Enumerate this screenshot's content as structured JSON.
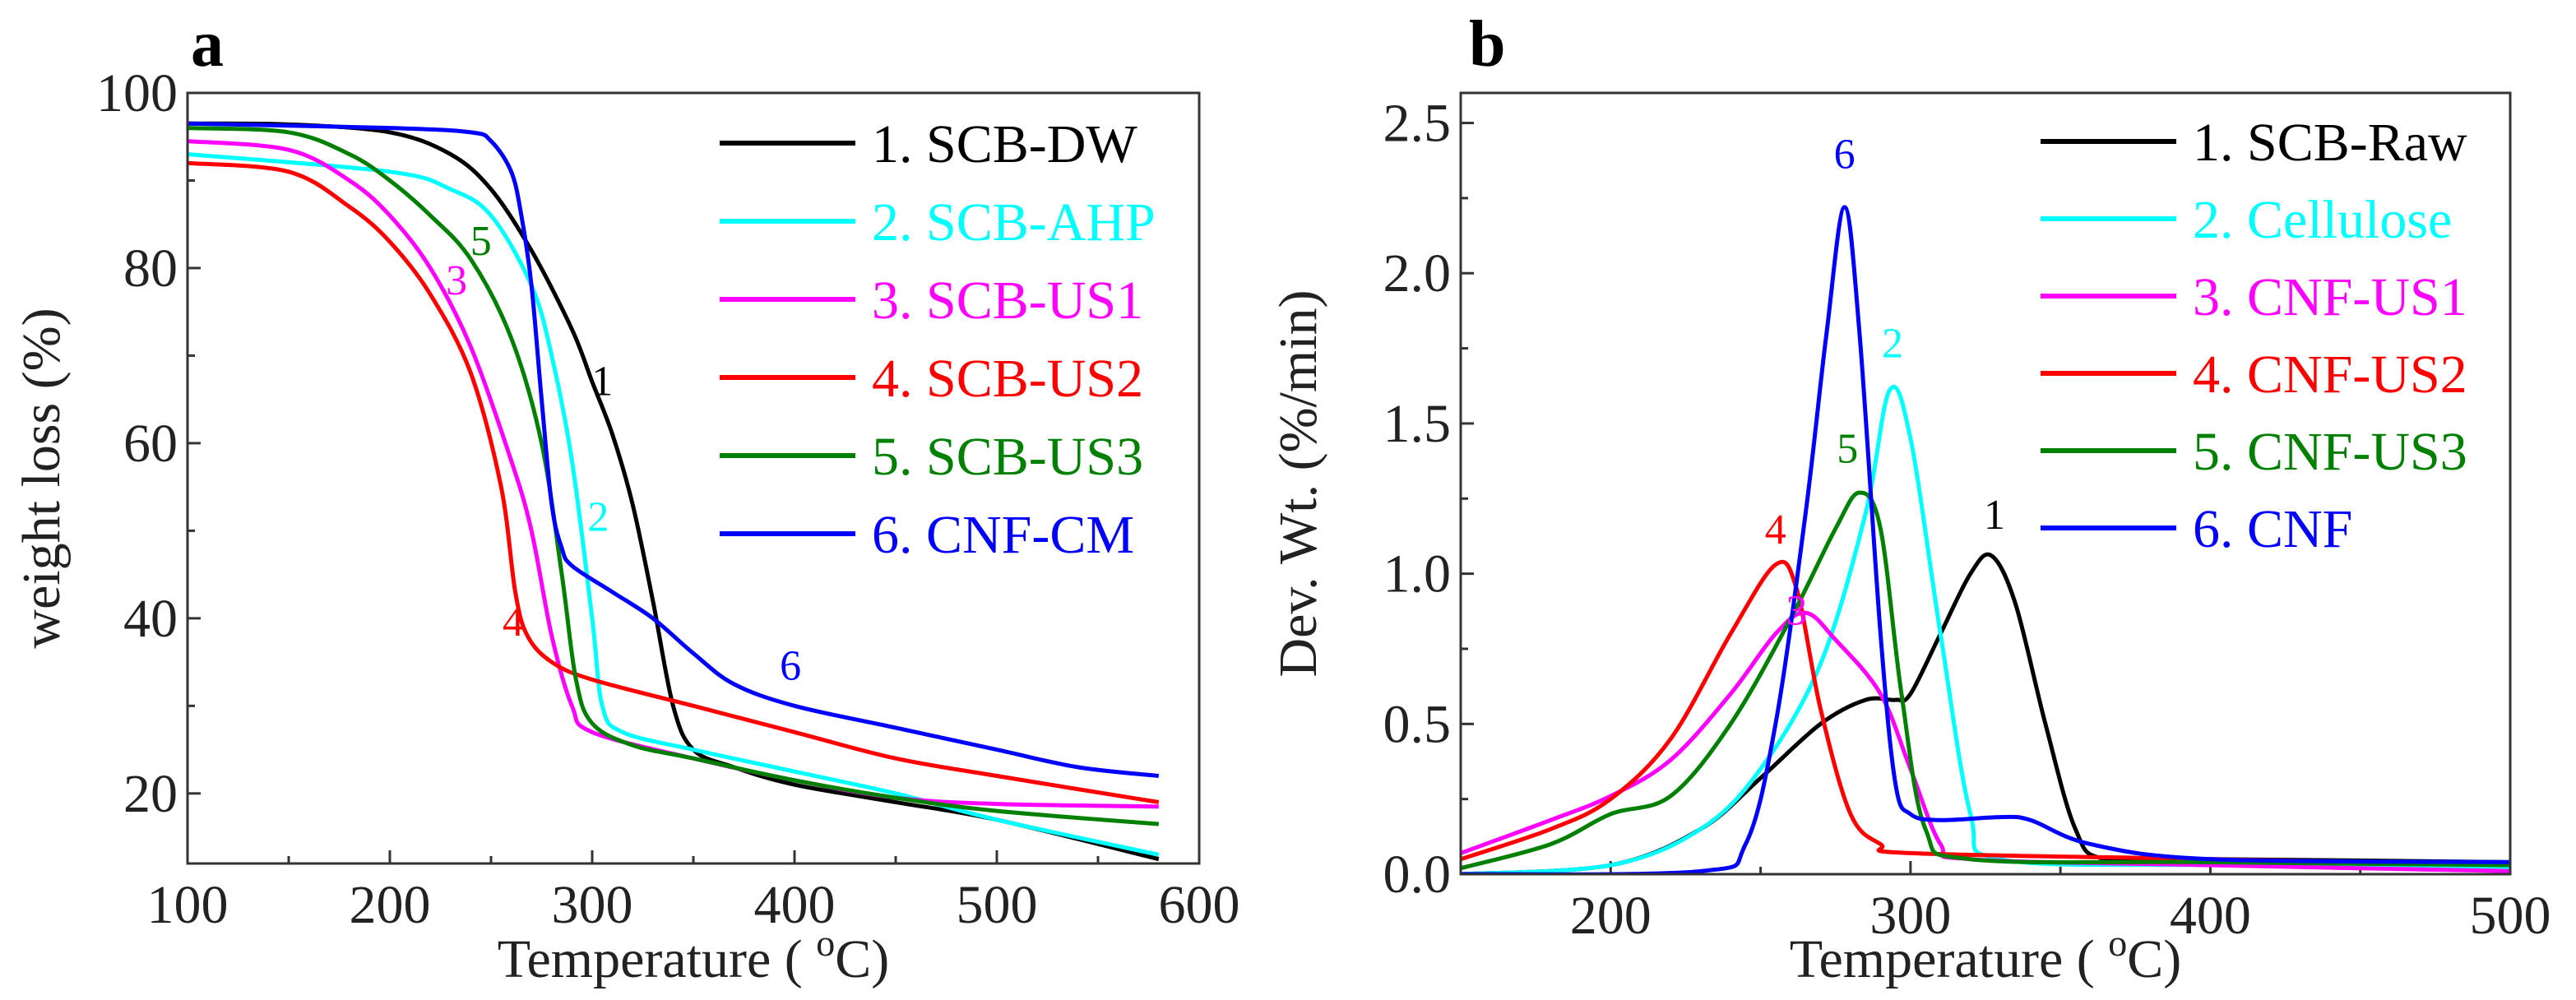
{
  "chart_data": [
    {
      "panel": "a",
      "type": "line",
      "xlabel": "Temperature ( ",
      "xlabel_sup": "o",
      "xlabel_end": "C)",
      "ylabel": "weight loss (%)",
      "xlim": [
        100,
        600
      ],
      "ylim": [
        12,
        100
      ],
      "xticks": [
        100,
        200,
        300,
        400,
        500,
        600
      ],
      "yticks": [
        20,
        40,
        60,
        80,
        100
      ],
      "legend_position": "top-right",
      "series": [
        {
          "name": "1. SCB-DW",
          "label": "1",
          "color": "#000000",
          "label_at": [
            305,
            65.5
          ],
          "x": [
            100,
            150,
            200,
            230,
            250,
            270,
            290,
            300,
            310,
            320,
            330,
            340,
            350,
            370,
            400,
            450,
            500,
            580
          ],
          "y": [
            96.5,
            96.4,
            95.5,
            93,
            89,
            82,
            73,
            67,
            61,
            53,
            42,
            30,
            25,
            23,
            21,
            19,
            17,
            12.5
          ]
        },
        {
          "name": "2. SCB-AHP",
          "label": "2",
          "color": "#00FFFF",
          "label_at": [
            303,
            50
          ],
          "x": [
            100,
            200,
            230,
            250,
            270,
            280,
            290,
            300,
            305,
            315,
            350,
            400,
            450,
            500,
            580
          ],
          "y": [
            93,
            91,
            89,
            86,
            78,
            70,
            58,
            40,
            30,
            27,
            25,
            22.5,
            20,
            17,
            13
          ]
        },
        {
          "name": "3. SCB-US1",
          "label": "3",
          "color": "#FF00FF",
          "label_at": [
            233,
            77
          ],
          "x": [
            100,
            150,
            180,
            200,
            220,
            240,
            260,
            270,
            280,
            290,
            300,
            350,
            400,
            450,
            500,
            580
          ],
          "y": [
            94.5,
            93.5,
            90,
            86,
            80,
            71,
            58,
            50,
            38,
            30,
            27,
            24,
            21.5,
            19.5,
            18.8,
            18.5
          ]
        },
        {
          "name": "4. SCB-US2",
          "label": "4",
          "color": "#FF0000",
          "label_at": [
            261,
            38
          ],
          "x": [
            100,
            150,
            180,
            200,
            220,
            240,
            255,
            262,
            268,
            280,
            300,
            350,
            400,
            450,
            500,
            580
          ],
          "y": [
            92,
            91,
            87,
            83,
            77,
            68,
            55,
            43,
            38,
            35,
            33,
            30,
            27,
            24,
            22,
            19
          ]
        },
        {
          "name": "5. SCB-US3",
          "label": "5",
          "color": "#008000",
          "label_at": [
            245,
            81.5
          ],
          "x": [
            100,
            150,
            180,
            200,
            220,
            240,
            260,
            275,
            285,
            292,
            300,
            320,
            350,
            400,
            450,
            500,
            580
          ],
          "y": [
            96,
            95.5,
            93,
            90,
            86,
            81,
            72,
            60,
            45,
            33,
            28,
            25.5,
            24,
            21.5,
            19.5,
            18,
            16.5
          ]
        },
        {
          "name": "6. CNF-CM",
          "label": "6",
          "color": "#0000FF",
          "label_at": [
            398,
            33
          ],
          "x": [
            100,
            200,
            240,
            250,
            260,
            265,
            270,
            275,
            280,
            285,
            290,
            310,
            330,
            350,
            370,
            400,
            450,
            500,
            540,
            580
          ],
          "y": [
            96.5,
            96,
            95.5,
            94.5,
            91,
            86,
            78,
            65,
            53,
            48,
            46,
            43,
            40,
            36,
            32.5,
            30,
            27.5,
            25,
            23,
            22
          ]
        }
      ]
    },
    {
      "panel": "b",
      "type": "line",
      "xlabel": "Temperature ( ",
      "xlabel_sup": "o",
      "xlabel_end": "C)",
      "ylabel": "Dev. Wt. (%/min)",
      "xlim": [
        150,
        500
      ],
      "ylim": [
        0,
        2.6
      ],
      "xticks": [
        200,
        300,
        400,
        500
      ],
      "yticks": [
        "0.0",
        "0.5",
        "1.0",
        "1.5",
        "2.0",
        "2.5"
      ],
      "legend_position": "top-right",
      "series": [
        {
          "name": "1. SCB-Raw",
          "label": "1",
          "color": "#000000",
          "label_at": [
            328,
            1.15
          ],
          "x": [
            150,
            200,
            230,
            250,
            270,
            285,
            295,
            300,
            310,
            320,
            327,
            335,
            345,
            355,
            365,
            400,
            500
          ],
          "y": [
            0.0,
            0.03,
            0.15,
            0.32,
            0.5,
            0.58,
            0.58,
            0.6,
            0.8,
            1.0,
            1.06,
            0.9,
            0.5,
            0.15,
            0.05,
            0.05,
            0.04
          ]
        },
        {
          "name": "2. Cellulose",
          "label": "2",
          "color": "#00FFFF",
          "label_at": [
            294,
            1.72
          ],
          "x": [
            150,
            200,
            230,
            250,
            270,
            285,
            293,
            300,
            310,
            320,
            330,
            400,
            500
          ],
          "y": [
            0.0,
            0.03,
            0.15,
            0.35,
            0.7,
            1.2,
            1.61,
            1.45,
            0.8,
            0.2,
            0.05,
            0.03,
            0.02
          ]
        },
        {
          "name": "3. CNF-US1",
          "label": "3",
          "color": "#FF00FF",
          "label_at": [
            262,
            0.83
          ],
          "x": [
            150,
            180,
            200,
            220,
            240,
            255,
            265,
            275,
            290,
            300,
            310,
            320,
            400,
            500
          ],
          "y": [
            0.07,
            0.18,
            0.26,
            0.38,
            0.6,
            0.8,
            0.87,
            0.78,
            0.6,
            0.35,
            0.1,
            0.05,
            0.03,
            0.01
          ]
        },
        {
          "name": "4. CNF-US2",
          "label": "4",
          "color": "#FF0000",
          "label_at": [
            255,
            1.1
          ],
          "x": [
            150,
            180,
            200,
            220,
            240,
            255,
            262,
            270,
            280,
            290,
            300,
            400,
            500
          ],
          "y": [
            0.05,
            0.15,
            0.25,
            0.45,
            0.8,
            1.03,
            0.95,
            0.55,
            0.2,
            0.1,
            0.07,
            0.05,
            0.03
          ]
        },
        {
          "name": "5. CNF-US3",
          "label": "5",
          "color": "#008000",
          "label_at": [
            279,
            1.37
          ],
          "x": [
            150,
            180,
            200,
            220,
            240,
            260,
            275,
            283,
            290,
            297,
            305,
            320,
            400,
            500
          ],
          "y": [
            0.02,
            0.1,
            0.2,
            0.26,
            0.5,
            0.85,
            1.15,
            1.27,
            1.15,
            0.6,
            0.15,
            0.05,
            0.04,
            0.03
          ]
        },
        {
          "name": "6. CNF",
          "label": "6",
          "color": "#0000FF",
          "label_at": [
            278,
            2.35
          ],
          "x": [
            150,
            230,
            245,
            255,
            265,
            272,
            278,
            283,
            290,
            295,
            300,
            310,
            330,
            340,
            360,
            400,
            500
          ],
          "y": [
            0.0,
            0.01,
            0.1,
            0.5,
            1.2,
            1.8,
            2.22,
            1.8,
            0.8,
            0.3,
            0.2,
            0.18,
            0.19,
            0.18,
            0.1,
            0.05,
            0.04
          ]
        }
      ]
    }
  ]
}
